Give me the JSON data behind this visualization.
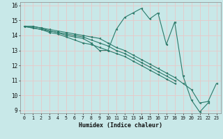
{
  "xlabel": "Humidex (Indice chaleur)",
  "xlim": [
    -0.5,
    23.5
  ],
  "ylim": [
    8.8,
    16.2
  ],
  "yticks": [
    9,
    10,
    11,
    12,
    13,
    14,
    15,
    16
  ],
  "xticks": [
    0,
    1,
    2,
    3,
    4,
    5,
    6,
    7,
    8,
    9,
    10,
    11,
    12,
    13,
    14,
    15,
    16,
    17,
    18,
    19,
    20,
    21,
    22,
    23
  ],
  "background_color": "#c8e8e8",
  "grid_color": "#e8c8c8",
  "line_color": "#2a7a6a",
  "series": [
    {
      "x": [
        0,
        1,
        2,
        3,
        4,
        5,
        6,
        7,
        8,
        9,
        10,
        11,
        12,
        13,
        14,
        15,
        16,
        17,
        18,
        19,
        20,
        21,
        22,
        23
      ],
      "y": [
        14.6,
        14.6,
        14.5,
        14.4,
        14.3,
        14.2,
        14.1,
        14.0,
        13.9,
        13.8,
        13.5,
        13.2,
        13.0,
        12.7,
        12.4,
        12.1,
        11.8,
        11.5,
        11.2,
        10.8,
        10.4,
        9.5,
        9.6,
        10.8
      ]
    },
    {
      "x": [
        0,
        1,
        2,
        3,
        4,
        5,
        6,
        7,
        8,
        9,
        10,
        11,
        12,
        13,
        14,
        15,
        16,
        17,
        18
      ],
      "y": [
        14.6,
        14.6,
        14.5,
        14.3,
        14.2,
        14.1,
        14.0,
        13.9,
        13.7,
        13.5,
        13.3,
        13.0,
        12.8,
        12.5,
        12.2,
        11.9,
        11.6,
        11.3,
        11.0
      ]
    },
    {
      "x": [
        0,
        1,
        2,
        3,
        4,
        5,
        6,
        7,
        8,
        9,
        10,
        11,
        12,
        13,
        14,
        15,
        16,
        17,
        18,
        19,
        20,
        21,
        22
      ],
      "y": [
        14.6,
        14.5,
        14.4,
        14.3,
        14.2,
        14.0,
        13.9,
        13.8,
        13.5,
        13.0,
        13.0,
        14.4,
        15.2,
        15.5,
        15.8,
        15.1,
        15.5,
        13.4,
        14.9,
        11.3,
        9.7,
        8.9,
        9.5
      ]
    },
    {
      "x": [
        0,
        1,
        2,
        3,
        4,
        5,
        6,
        7,
        8,
        9,
        10,
        11,
        12,
        13,
        14,
        15,
        16,
        17,
        18
      ],
      "y": [
        14.6,
        14.5,
        14.4,
        14.2,
        14.1,
        13.9,
        13.7,
        13.5,
        13.4,
        13.2,
        13.0,
        12.8,
        12.6,
        12.3,
        12.0,
        11.7,
        11.4,
        11.1,
        10.8
      ]
    }
  ]
}
